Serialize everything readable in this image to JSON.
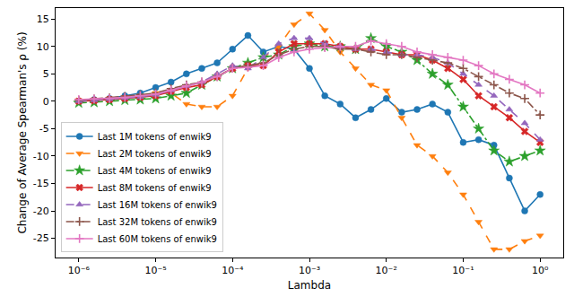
{
  "chart_data": {
    "type": "line",
    "x_label": "Lambda",
    "y_label": "Change of Average Spearman's ρ (%)",
    "log": "x",
    "grid": false,
    "legend": "lower left",
    "xlim": [
      5e-07,
      2
    ],
    "ylim": [
      -28.5,
      17
    ],
    "xticks": [
      {
        "value": 1e-06,
        "label": "10⁻⁶"
      },
      {
        "value": 1e-05,
        "label": "10⁻⁵"
      },
      {
        "value": 0.0001,
        "label": "10⁻⁴"
      },
      {
        "value": 0.001,
        "label": "10⁻³"
      },
      {
        "value": 0.01,
        "label": "10⁻²"
      },
      {
        "value": 0.1,
        "label": "10⁻¹"
      },
      {
        "value": 1,
        "label": "10⁰"
      }
    ],
    "yticks": [
      -25,
      -20,
      -15,
      -10,
      -5,
      0,
      5,
      10,
      15
    ],
    "x": [
      1e-06,
      1.585e-06,
      2.512e-06,
      3.981e-06,
      6.31e-06,
      1e-05,
      1.585e-05,
      2.512e-05,
      3.981e-05,
      6.31e-05,
      0.0001,
      0.0001585,
      0.0002512,
      0.0003981,
      0.000631,
      0.001,
      0.001585,
      0.002512,
      0.003981,
      0.00631,
      0.01,
      0.01585,
      0.02512,
      0.03981,
      0.0631,
      0.1,
      0.1585,
      0.2512,
      0.3981,
      0.631,
      1
    ],
    "series": [
      {
        "name": "Last 1M tokens of enwik9",
        "color": "#1f77b4",
        "marker": "circle",
        "line_style": "solid",
        "values": [
          0,
          0.3,
          0.5,
          1,
          1.5,
          2.5,
          3.5,
          5,
          6,
          7,
          9.5,
          12,
          9,
          10,
          9.5,
          6,
          1,
          -0.5,
          -3,
          -1.5,
          0.5,
          -2,
          -1.5,
          -0.5,
          -2,
          -7.5,
          -7,
          -8,
          -14,
          -20,
          -17
        ]
      },
      {
        "name": "Last 2M tokens of enwik9",
        "color": "#ff7f0e",
        "marker": "triangle-down",
        "line_style": "dashed",
        "values": [
          0.2,
          0.3,
          0.5,
          0.7,
          1,
          1.5,
          1.5,
          -0.5,
          -1,
          -1,
          1,
          6,
          8,
          10,
          14,
          16,
          13,
          9,
          6,
          3,
          2,
          -3,
          -8,
          -10,
          -13,
          -17,
          -22,
          -27,
          -27,
          -25.5,
          -24.5
        ]
      },
      {
        "name": "Last 4M tokens of enwik9",
        "color": "#2ca02c",
        "marker": "star",
        "line_style": "dashdot",
        "values": [
          -0.3,
          -0.2,
          0,
          0.2,
          0.3,
          0.5,
          1,
          1.5,
          3,
          4.5,
          6,
          7,
          8,
          8.5,
          10,
          10.5,
          10,
          10,
          9.5,
          11.5,
          10,
          9,
          7.5,
          5,
          3,
          -1,
          -5,
          -9,
          -11,
          -10,
          -9
        ]
      },
      {
        "name": "Last 8M tokens of enwik9",
        "color": "#d62728",
        "marker": "x",
        "line_style": "solid",
        "values": [
          0,
          0.1,
          0.3,
          0.5,
          0.7,
          1,
          1.8,
          2.5,
          3,
          4.5,
          6,
          6.5,
          6.5,
          9,
          10.5,
          10.5,
          10.5,
          10,
          9.5,
          9.5,
          9,
          8.5,
          8.5,
          7.5,
          6,
          4,
          1,
          -1,
          -3,
          -5.5,
          -7.5
        ]
      },
      {
        "name": "Last 16M tokens of enwik9",
        "color": "#9467bd",
        "marker": "triangle-up",
        "line_style": "dashed",
        "values": [
          0,
          0.2,
          0.4,
          0.6,
          0.8,
          1.2,
          2,
          2.8,
          3.5,
          5,
          6.5,
          6,
          8,
          10.5,
          11.5,
          11.5,
          10.5,
          10,
          9.5,
          9.5,
          9,
          8.5,
          8.5,
          8,
          7,
          5,
          3,
          1,
          -1.5,
          -4,
          -7
        ]
      },
      {
        "name": "Last 32M tokens of enwik9",
        "color": "#8c564b",
        "marker": "plus",
        "line_style": "dashdot",
        "values": [
          0.2,
          0.4,
          0.6,
          0.9,
          1.2,
          1.5,
          2.3,
          3,
          3.5,
          4.5,
          6,
          6.5,
          7,
          8.5,
          9.5,
          10,
          10,
          9.5,
          9.5,
          9,
          8.5,
          8.5,
          8,
          7.5,
          7,
          6,
          4.5,
          3,
          1.5,
          0.5,
          -2.5
        ]
      },
      {
        "name": "Last 60M tokens of enwik9",
        "color": "#e377c2",
        "marker": "plus",
        "line_style": "solid",
        "values": [
          0.3,
          0.4,
          0.5,
          0.7,
          1,
          1.3,
          2,
          2.8,
          3.5,
          4.5,
          6,
          6.2,
          6.5,
          8,
          9,
          9.5,
          9.8,
          10,
          10,
          11,
          10.5,
          10,
          9,
          8.5,
          8,
          7.5,
          6.5,
          5,
          4,
          3,
          1.5
        ]
      }
    ]
  }
}
